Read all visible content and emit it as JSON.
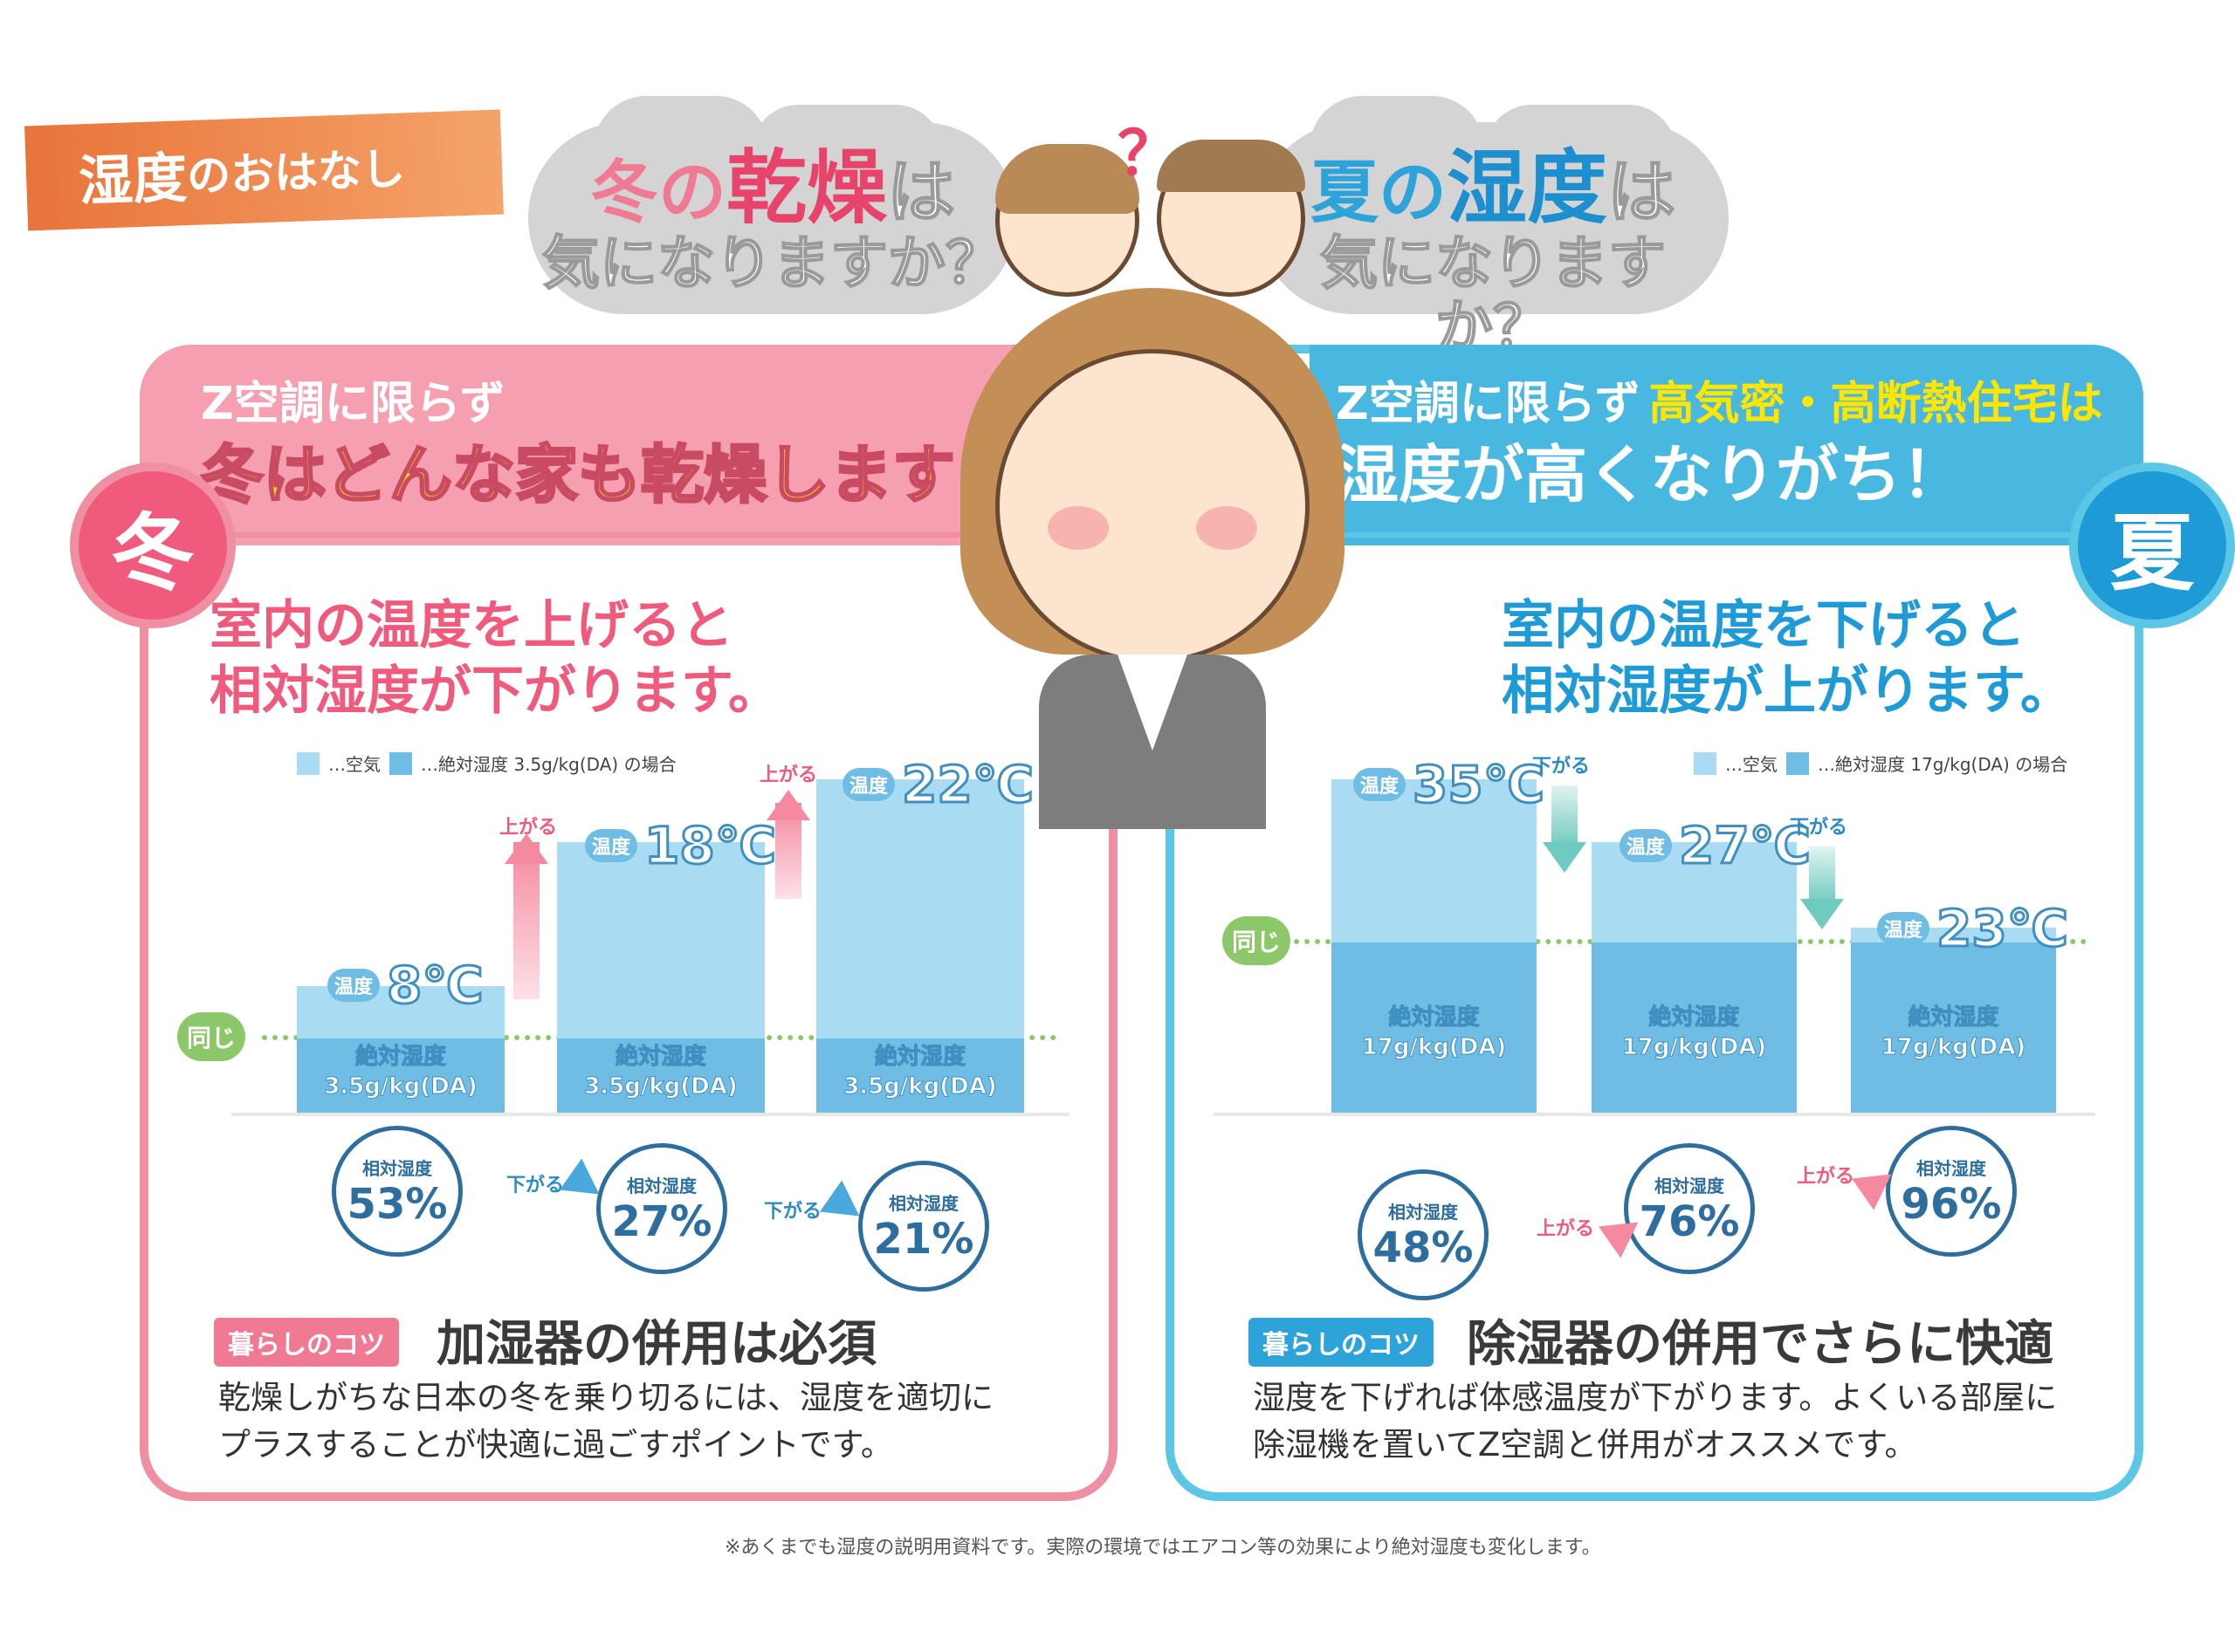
{
  "header": {
    "tag_part1": "湿度",
    "tag_part2": "の",
    "tag_part3": "おはなし"
  },
  "clouds": {
    "winter": {
      "line1_pre": "冬の",
      "line1_em": "乾燥",
      "line1_post": "は",
      "line2": "気になりますか？"
    },
    "summer": {
      "line1_pre": "夏の",
      "line1_em": "湿度",
      "line1_post": "は",
      "line2": "気になりますか？"
    },
    "question_mark": "？"
  },
  "winter": {
    "season": "冬",
    "band_sub": "Z空調に限らず",
    "band_main": "冬はどんな家も乾燥します！",
    "headline1": "室内の温度を上げると",
    "headline2": "相対湿度が下がります。",
    "legend_air": "…空気",
    "legend_abs": "…絶対湿度 3.5g/kg(DA) の場合",
    "same_label": "同じ",
    "temp_key": "温度",
    "abs_line1": "絶対湿度",
    "abs_line2": "3.5g/kg(DA)",
    "up_label": "上がる",
    "down_label": "下がる",
    "rh_key": "相対湿度",
    "bars": [
      {
        "temp": "8℃",
        "rh": "53%"
      },
      {
        "temp": "18℃",
        "rh": "27%"
      },
      {
        "temp": "22℃",
        "rh": "21%"
      }
    ],
    "tip_tag": "暮らしのコツ",
    "tip_title": "加湿器の併用は必須",
    "tip_body1": "乾燥しがちな日本の冬を乗り切るには、湿度を適切に",
    "tip_body2": "プラスすることが快適に過ごすポイントです。",
    "accent": "#f08ea2"
  },
  "summer": {
    "season": "夏",
    "band_sub": "Z空調に限らず",
    "band_em": "高気密・高断熱住宅は",
    "band_main": "湿度が高くなりがち！",
    "headline1": "室内の温度を下げると",
    "headline2": "相対湿度が上がります。",
    "legend_air": "…空気",
    "legend_abs": "…絶対湿度 17g/kg(DA) の場合",
    "same_label": "同じ",
    "temp_key": "温度",
    "abs_line1": "絶対湿度",
    "abs_line2": "17g/kg(DA)",
    "up_label": "上がる",
    "down_label": "下がる",
    "rh_key": "相対湿度",
    "bars": [
      {
        "temp": "35℃",
        "rh": "48%"
      },
      {
        "temp": "27℃",
        "rh": "76%"
      },
      {
        "temp": "23℃",
        "rh": "96%"
      }
    ],
    "tip_tag": "暮らしのコツ",
    "tip_title": "除湿器の併用でさらに快適",
    "tip_body1": "湿度を下げれば体感温度が下がります。よくいる部屋に",
    "tip_body2": "除湿機を置いてZ空調と併用がオススメです。",
    "accent": "#5cc6e6"
  },
  "footer_note": "※あくまでも湿度の説明用資料です。実際の環境ではエアコン等の効果により絶対湿度も変化します。"
}
